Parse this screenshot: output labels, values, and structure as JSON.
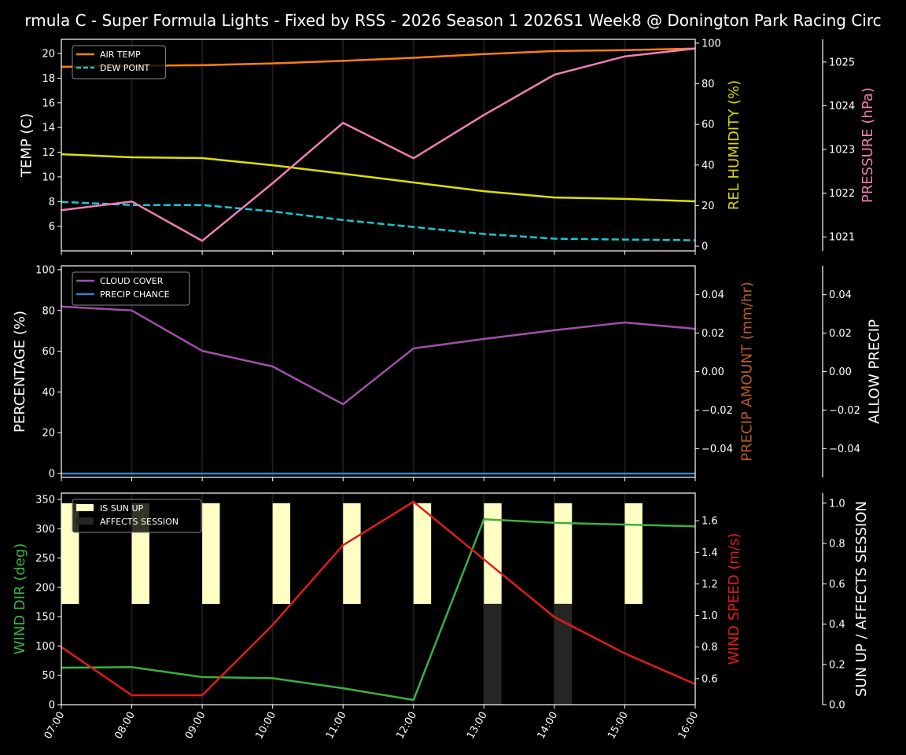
{
  "title": "rmula C - Super Formula Lights - Fixed by RSS - 2026 Season 1 2026S1 Week8 @ Donington Park Racing Circ",
  "chart_data": [
    {
      "type": "line",
      "x": [
        "07:00",
        "08:00",
        "09:00",
        "10:00",
        "11:00",
        "12:00",
        "13:00",
        "14:00",
        "15:00",
        "16:00"
      ],
      "grid": "vertical",
      "legend": "top-left",
      "axes": {
        "left": {
          "label": "TEMP (C)",
          "color": "#ffffff",
          "ylim": [
            4.0,
            21.15
          ],
          "ticks": [
            6,
            8,
            10,
            12,
            14,
            16,
            18,
            20
          ],
          "tick_labels": [
            "6",
            "8",
            "10",
            "12",
            "14",
            "16",
            "18",
            "20"
          ]
        },
        "right1": {
          "label": "REL HUMIDITY (%)",
          "color": "#d8d800",
          "ylim": [
            -2.3,
            101.9
          ],
          "ticks": [
            0,
            20,
            40,
            60,
            80,
            100
          ],
          "tick_labels": [
            "0",
            "20",
            "40",
            "60",
            "80",
            "100"
          ]
        },
        "right2": {
          "label": "PRESSURE (hPa)",
          "color": "#f07fb8",
          "ylim": [
            1020.68,
            1025.52
          ],
          "ticks": [
            1021,
            1022,
            1023,
            1024,
            1025
          ],
          "tick_labels": [
            "1021",
            "1022",
            "1023",
            "1024",
            "1025"
          ]
        }
      },
      "series": [
        {
          "name": "AIR TEMP",
          "axis": "left",
          "color": "#ff7f0e",
          "dashed": false,
          "values": [
            18.92,
            19.0,
            19.05,
            19.2,
            19.4,
            19.65,
            19.95,
            20.2,
            20.27,
            20.4
          ]
        },
        {
          "name": "DEW POINT",
          "axis": "left",
          "color": "#17c8d0",
          "dashed": true,
          "values": [
            7.97,
            7.72,
            7.72,
            7.2,
            6.5,
            5.94,
            5.37,
            4.99,
            4.92,
            4.86
          ]
        },
        {
          "axis": "right1",
          "color": "#e0e000",
          "dashed": false,
          "values": [
            45.3,
            43.8,
            43.4,
            39.9,
            35.7,
            31.4,
            27.1,
            24.0,
            23.3,
            22.1
          ]
        },
        {
          "axis": "right2",
          "color": "#f07fb8",
          "dashed": false,
          "values": [
            1021.61,
            1021.81,
            1020.91,
            1022.23,
            1023.61,
            1022.8,
            1023.79,
            1024.71,
            1025.13,
            1025.31
          ]
        }
      ]
    },
    {
      "type": "line",
      "x": [
        "07:00",
        "08:00",
        "09:00",
        "10:00",
        "11:00",
        "12:00",
        "13:00",
        "14:00",
        "15:00",
        "16:00"
      ],
      "grid": "vertical",
      "legend": "top-left",
      "axes": {
        "left": {
          "label": "PERCENTAGE (%)",
          "color": "#ffffff",
          "ylim": [
            -1.9,
            101.9
          ],
          "ticks": [
            0,
            20,
            40,
            60,
            80,
            100
          ],
          "tick_labels": [
            "0",
            "20",
            "40",
            "60",
            "80",
            "100"
          ]
        },
        "right1": {
          "label": "PRECIP AMOUNT (mm/hr)",
          "color": "#b85c22",
          "ylim": [
            -0.055,
            0.055
          ],
          "ticks": [
            -0.04,
            -0.02,
            0,
            0.02,
            0.04
          ],
          "tick_labels": [
            "−0.04",
            "−0.02",
            "0.00",
            "0.02",
            "0.04"
          ]
        },
        "right2": {
          "label": "ALLOW PRECIP",
          "color": "#ffffff",
          "ylim": [
            -0.055,
            0.055
          ],
          "ticks": [
            -0.04,
            -0.02,
            0,
            0.02,
            0.04
          ],
          "tick_labels": [
            "−0.04",
            "−0.02",
            "0.00",
            "0.02",
            "0.04"
          ]
        }
      },
      "series": [
        {
          "name": "CLOUD COVER",
          "axis": "left",
          "color": "#a050a8",
          "dashed": false,
          "values": [
            81.9,
            80.0,
            60.2,
            52.5,
            34.0,
            61.4,
            66.0,
            70.3,
            74.1,
            71.0
          ]
        },
        {
          "name": "PRECIP CHANCE",
          "axis": "left",
          "color": "#3a80c8",
          "dashed": false,
          "values": [
            0,
            0,
            0,
            0,
            0,
            0,
            0,
            0,
            0,
            0
          ]
        }
      ]
    },
    {
      "type": "line",
      "x": [
        "07:00",
        "08:00",
        "09:00",
        "10:00",
        "11:00",
        "12:00",
        "13:00",
        "14:00",
        "15:00",
        "16:00"
      ],
      "grid": "vertical",
      "legend": "top-left",
      "axes": {
        "left": {
          "label": "WIND DIR (deg)",
          "color": "#3cb043",
          "ylim": [
            0,
            360.7
          ],
          "ticks": [
            0,
            50,
            100,
            150,
            200,
            250,
            300,
            350
          ],
          "tick_labels": [
            "0",
            "50",
            "100",
            "150",
            "200",
            "250",
            "300",
            "350"
          ]
        },
        "right1": {
          "label": "WIND SPEED (m/s)",
          "color": "#e01c1c",
          "ylim": [
            0.435,
            1.775
          ],
          "ticks": [
            0.6,
            0.8,
            1.0,
            1.2,
            1.4,
            1.6
          ],
          "tick_labels": [
            "0.6",
            "0.8",
            "1.0",
            "1.2",
            "1.4",
            "1.6"
          ]
        },
        "right2": {
          "label": "SUN UP / AFFECTS SESSION",
          "color": "#ffffff",
          "ylim": [
            0,
            1.05
          ],
          "ticks": [
            0,
            0.2,
            0.4,
            0.6,
            0.8,
            1.0
          ],
          "tick_labels": [
            "0.0",
            "0.2",
            "0.4",
            "0.6",
            "0.8",
            "1.0"
          ]
        }
      },
      "bars": [
        {
          "name": "IS SUN UP",
          "color": "#ffffc4",
          "values": [
            1,
            1,
            1,
            1,
            1,
            1,
            1,
            1,
            1,
            1
          ]
        },
        {
          "name": "AFFECTS SESSION",
          "color": "#262626",
          "values": [
            0,
            0,
            0,
            0,
            0,
            0,
            1,
            1,
            0,
            0
          ]
        }
      ],
      "series": [
        {
          "axis": "left",
          "color": "#3cb043",
          "dashed": false,
          "values": [
            63,
            64,
            47,
            45,
            28,
            8,
            316,
            310,
            307,
            304
          ]
        },
        {
          "axis": "right1",
          "color": "#e01c1c",
          "dashed": false,
          "values": [
            0.8,
            0.495,
            0.495,
            0.94,
            1.445,
            1.72,
            1.355,
            0.99,
            0.76,
            0.565
          ]
        }
      ]
    }
  ]
}
